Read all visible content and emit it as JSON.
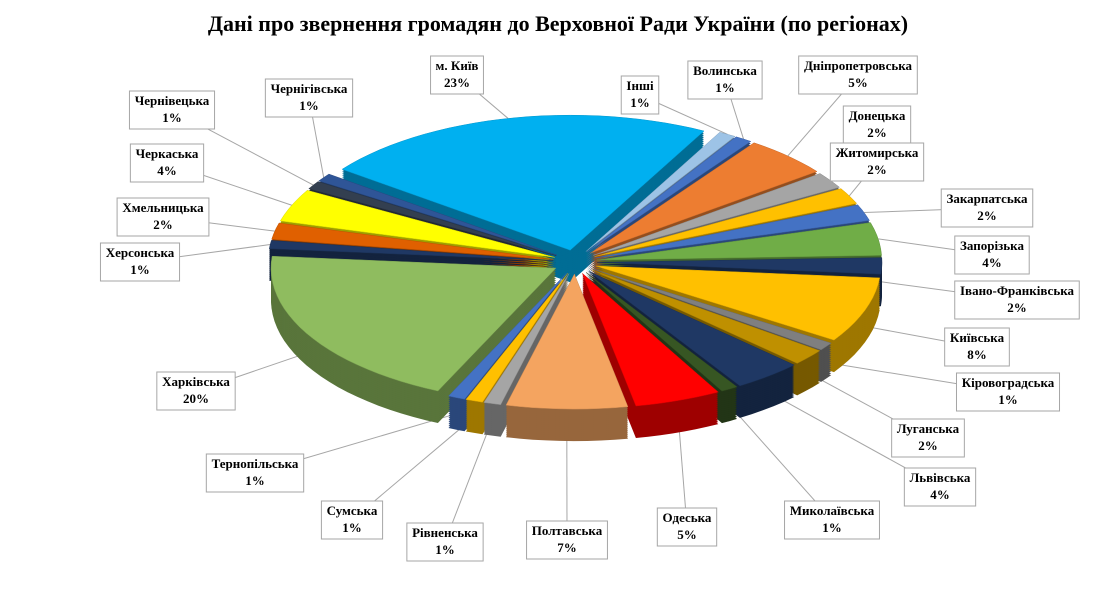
{
  "chart_data": {
    "type": "pie",
    "title": "Дані про звернення громадян до Верховної Ради України (по регіонах)",
    "categories": [
      "Інші",
      "Волинська",
      "Дніпропетровська",
      "Донецька",
      "Житомирська",
      "Закарпатська",
      "Запорізька",
      "Івано-Франківська",
      "Київська",
      "Кіровоградська",
      "Луганська",
      "Львівська",
      "Миколаївська",
      "Одеська",
      "Полтавська",
      "Рівненська",
      "Сумська",
      "Тернопільська",
      "Харківська",
      "Херсонська",
      "Хмельницька",
      "Черкаська",
      "Чернівецька",
      "Чернігівська",
      "м. Київ"
    ],
    "values": [
      1,
      1,
      5,
      2,
      2,
      2,
      4,
      2,
      8,
      1,
      2,
      4,
      1,
      5,
      7,
      1,
      1,
      1,
      20,
      1,
      2,
      4,
      1,
      1,
      23
    ],
    "value_labels": [
      "1%",
      "1%",
      "5%",
      "2%",
      "2%",
      "2%",
      "4%",
      "2%",
      "8%",
      "1%",
      "2%",
      "4%",
      "1%",
      "5%",
      "7%",
      "1%",
      "1%",
      "1%",
      "20%",
      "1%",
      "2%",
      "4%",
      "1%",
      "1%",
      "23%"
    ],
    "colors": [
      "#9dc3e6",
      "#4472c4",
      "#ed7d31",
      "#a5a5a5",
      "#ffc000",
      "#4472c4",
      "#70ad47",
      "#1f3864",
      "#ffc000",
      "#7f7f7f",
      "#bf9000",
      "#1f3864",
      "#375623",
      "#ff0000",
      "#f4a460",
      "#a5a5a5",
      "#ffc000",
      "#4472c4",
      "#8fbc5f",
      "#1f3864",
      "#e06000",
      "#ffff00",
      "#333f50",
      "#2f5597",
      "#00b0f0"
    ]
  }
}
